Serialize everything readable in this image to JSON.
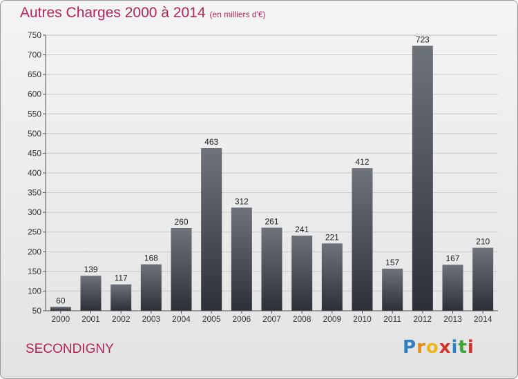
{
  "title": "Autres Charges 2000 à 2014",
  "subtitle": "(en milliers d'€)",
  "commune": "SECONDIGNY",
  "logo": {
    "letters": [
      "P",
      "r",
      "o",
      "x",
      "i",
      "t",
      "i"
    ],
    "colors": [
      "#2f7fc1",
      "#e88a1a",
      "#f0b41c",
      "#d2342b",
      "#2f7fc1",
      "#3aa33a",
      "#d2342b"
    ]
  },
  "colors": {
    "title": "#b2245a",
    "bar_top": "#6e737a",
    "bar_bottom": "#2c3036",
    "grid": "#c8c8c8"
  },
  "chart_data": {
    "type": "bar",
    "categories": [
      "2000",
      "2001",
      "2002",
      "2003",
      "2004",
      "2005",
      "2006",
      "2007",
      "2008",
      "2009",
      "2010",
      "2011",
      "2012",
      "2013",
      "2014"
    ],
    "values": [
      60,
      139,
      117,
      168,
      260,
      463,
      312,
      261,
      241,
      221,
      412,
      157,
      723,
      167,
      210
    ],
    "ylim": [
      50,
      750
    ],
    "yticks": [
      50,
      100,
      150,
      200,
      250,
      300,
      350,
      400,
      450,
      500,
      550,
      600,
      650,
      700,
      750
    ],
    "grid": true,
    "xlabel": "",
    "ylabel": ""
  }
}
